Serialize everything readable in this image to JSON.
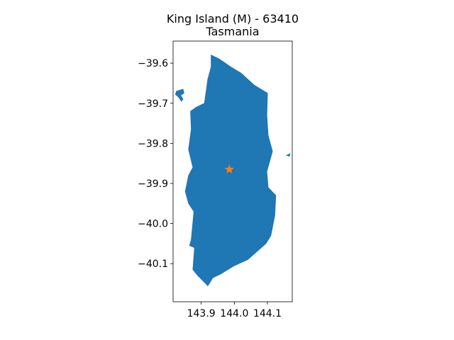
{
  "figure": {
    "title_line1": "King Island (M) - 63410",
    "title_line2": "Tasmania"
  },
  "chart_data": {
    "type": "map",
    "title": "King Island (M) - 63410\nTasmania",
    "xlabel": "",
    "ylabel": "",
    "xlim": [
      143.815,
      144.175
    ],
    "ylim": [
      -40.195,
      -39.545
    ],
    "grid": false,
    "xticks": [
      {
        "value": 143.9,
        "label": "143.9"
      },
      {
        "value": 144.0,
        "label": "144.0"
      },
      {
        "value": 144.1,
        "label": "144.1"
      }
    ],
    "yticks": [
      {
        "value": -39.6,
        "label": "−39.6"
      },
      {
        "value": -39.7,
        "label": "−39.7"
      },
      {
        "value": -39.8,
        "label": "−39.8"
      },
      {
        "value": -39.9,
        "label": "−39.9"
      },
      {
        "value": -40.0,
        "label": "−40.0"
      },
      {
        "value": -40.1,
        "label": "−40.1"
      }
    ],
    "region_fill": "#1f77b4",
    "marker": {
      "lon": 143.985,
      "lat": -39.865,
      "symbol": "star",
      "color": "#ff7f0e"
    },
    "main_island": [
      [
        143.93,
        -39.58
      ],
      [
        143.955,
        -39.59
      ],
      [
        143.99,
        -39.61
      ],
      [
        144.02,
        -39.625
      ],
      [
        144.06,
        -39.655
      ],
      [
        144.1,
        -39.675
      ],
      [
        144.098,
        -39.73
      ],
      [
        144.102,
        -39.78
      ],
      [
        144.115,
        -39.82
      ],
      [
        144.098,
        -39.87
      ],
      [
        144.102,
        -39.91
      ],
      [
        144.125,
        -39.93
      ],
      [
        144.122,
        -39.98
      ],
      [
        144.11,
        -40.03
      ],
      [
        144.095,
        -40.05
      ],
      [
        144.04,
        -40.09
      ],
      [
        144.0,
        -40.105
      ],
      [
        143.97,
        -40.12
      ],
      [
        143.96,
        -40.125
      ],
      [
        143.935,
        -40.135
      ],
      [
        143.92,
        -40.155
      ],
      [
        143.89,
        -40.13
      ],
      [
        143.875,
        -40.115
      ],
      [
        143.88,
        -40.06
      ],
      [
        143.865,
        -40.055
      ],
      [
        143.87,
        -40.04
      ],
      [
        143.878,
        -39.97
      ],
      [
        143.862,
        -39.95
      ],
      [
        143.852,
        -39.92
      ],
      [
        143.862,
        -39.88
      ],
      [
        143.875,
        -39.86
      ],
      [
        143.862,
        -39.815
      ],
      [
        143.87,
        -39.765
      ],
      [
        143.868,
        -39.72
      ],
      [
        143.885,
        -39.71
      ],
      [
        143.91,
        -39.7
      ],
      [
        143.92,
        -39.64
      ],
      [
        143.93,
        -39.61
      ]
    ],
    "islet_1": [
      [
        143.825,
        -39.67
      ],
      [
        143.845,
        -39.665
      ],
      [
        143.848,
        -39.675
      ],
      [
        143.838,
        -39.68
      ],
      [
        143.845,
        -39.69
      ],
      [
        143.84,
        -39.695
      ],
      [
        143.832,
        -39.685
      ],
      [
        143.822,
        -39.678
      ]
    ],
    "islet_2": [
      [
        144.158,
        -39.83
      ],
      [
        144.168,
        -39.826
      ],
      [
        144.166,
        -39.832
      ]
    ]
  }
}
